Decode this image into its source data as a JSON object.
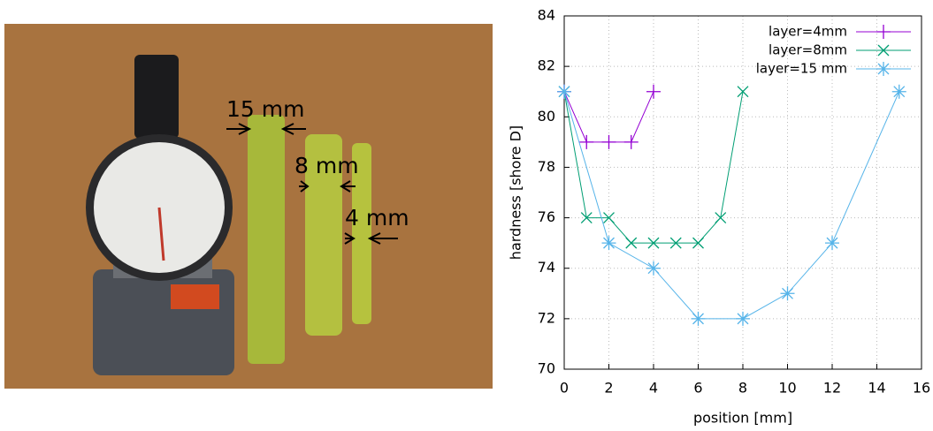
{
  "photo": {
    "labels": [
      "15 mm",
      "8 mm",
      "4 mm"
    ]
  },
  "chart_data": {
    "type": "line",
    "xlabel": "position [mm]",
    "ylabel": "hardness [shore D]",
    "xlim": [
      0,
      16
    ],
    "xticks": [
      0,
      2,
      4,
      6,
      8,
      10,
      12,
      14,
      16
    ],
    "ylim": [
      70,
      84
    ],
    "yticks": [
      70,
      72,
      74,
      76,
      78,
      80,
      82,
      84
    ],
    "grid": true,
    "legend": "upper right",
    "series": [
      {
        "name": "layer=4mm",
        "color": "#9400d3",
        "marker": "plus",
        "x": [
          0,
          1,
          2,
          3,
          4
        ],
        "values": [
          81,
          79,
          79,
          79,
          81
        ]
      },
      {
        "name": "layer=8mm",
        "color": "#009e73",
        "marker": "cross",
        "x": [
          0,
          1,
          2,
          3,
          4,
          5,
          6,
          7,
          8
        ],
        "values": [
          81,
          76,
          76,
          75,
          75,
          75,
          75,
          76,
          81
        ]
      },
      {
        "name": "layer=15 mm",
        "color": "#56b4e9",
        "marker": "star",
        "x": [
          0,
          2,
          4,
          6,
          8,
          10,
          12,
          15
        ],
        "values": [
          81,
          75,
          74,
          72,
          72,
          73,
          75,
          81
        ]
      }
    ]
  }
}
